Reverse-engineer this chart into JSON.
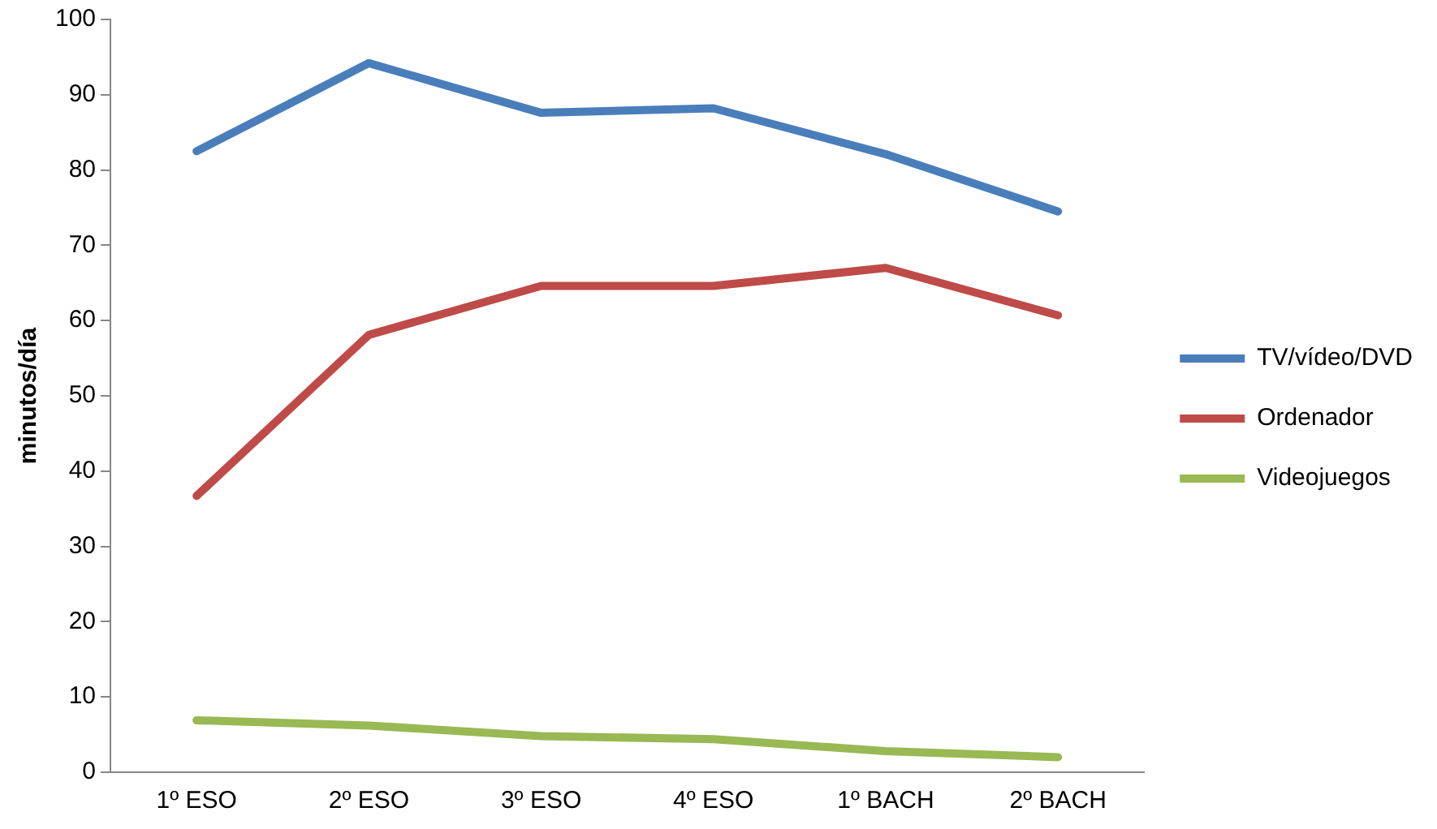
{
  "chart_data": {
    "type": "line",
    "ylabel": "minutos/día",
    "categories": [
      "1º ESO",
      "2º ESO",
      "3º ESO",
      "4º ESO",
      "1º BACH",
      "2º BACH"
    ],
    "series": [
      {
        "name": "TV/vídeo/DVD",
        "color": "#4a7ebb",
        "values": [
          82.5,
          94.2,
          87.6,
          88.2,
          82.1,
          74.5
        ]
      },
      {
        "name": "Ordenador",
        "color": "#be4b48",
        "values": [
          36.7,
          58.1,
          64.6,
          64.6,
          67,
          60.7
        ]
      },
      {
        "name": "Videojuegos",
        "color": "#98b954",
        "values": [
          6.9,
          6.2,
          4.8,
          4.4,
          2.8,
          2
        ]
      }
    ],
    "ylim": [
      0,
      100
    ],
    "yticks": [
      0,
      10,
      20,
      30,
      40,
      50,
      60,
      70,
      80,
      90,
      100
    ],
    "grid": false,
    "legend": "right",
    "marker": "none",
    "line_style": "solid"
  }
}
